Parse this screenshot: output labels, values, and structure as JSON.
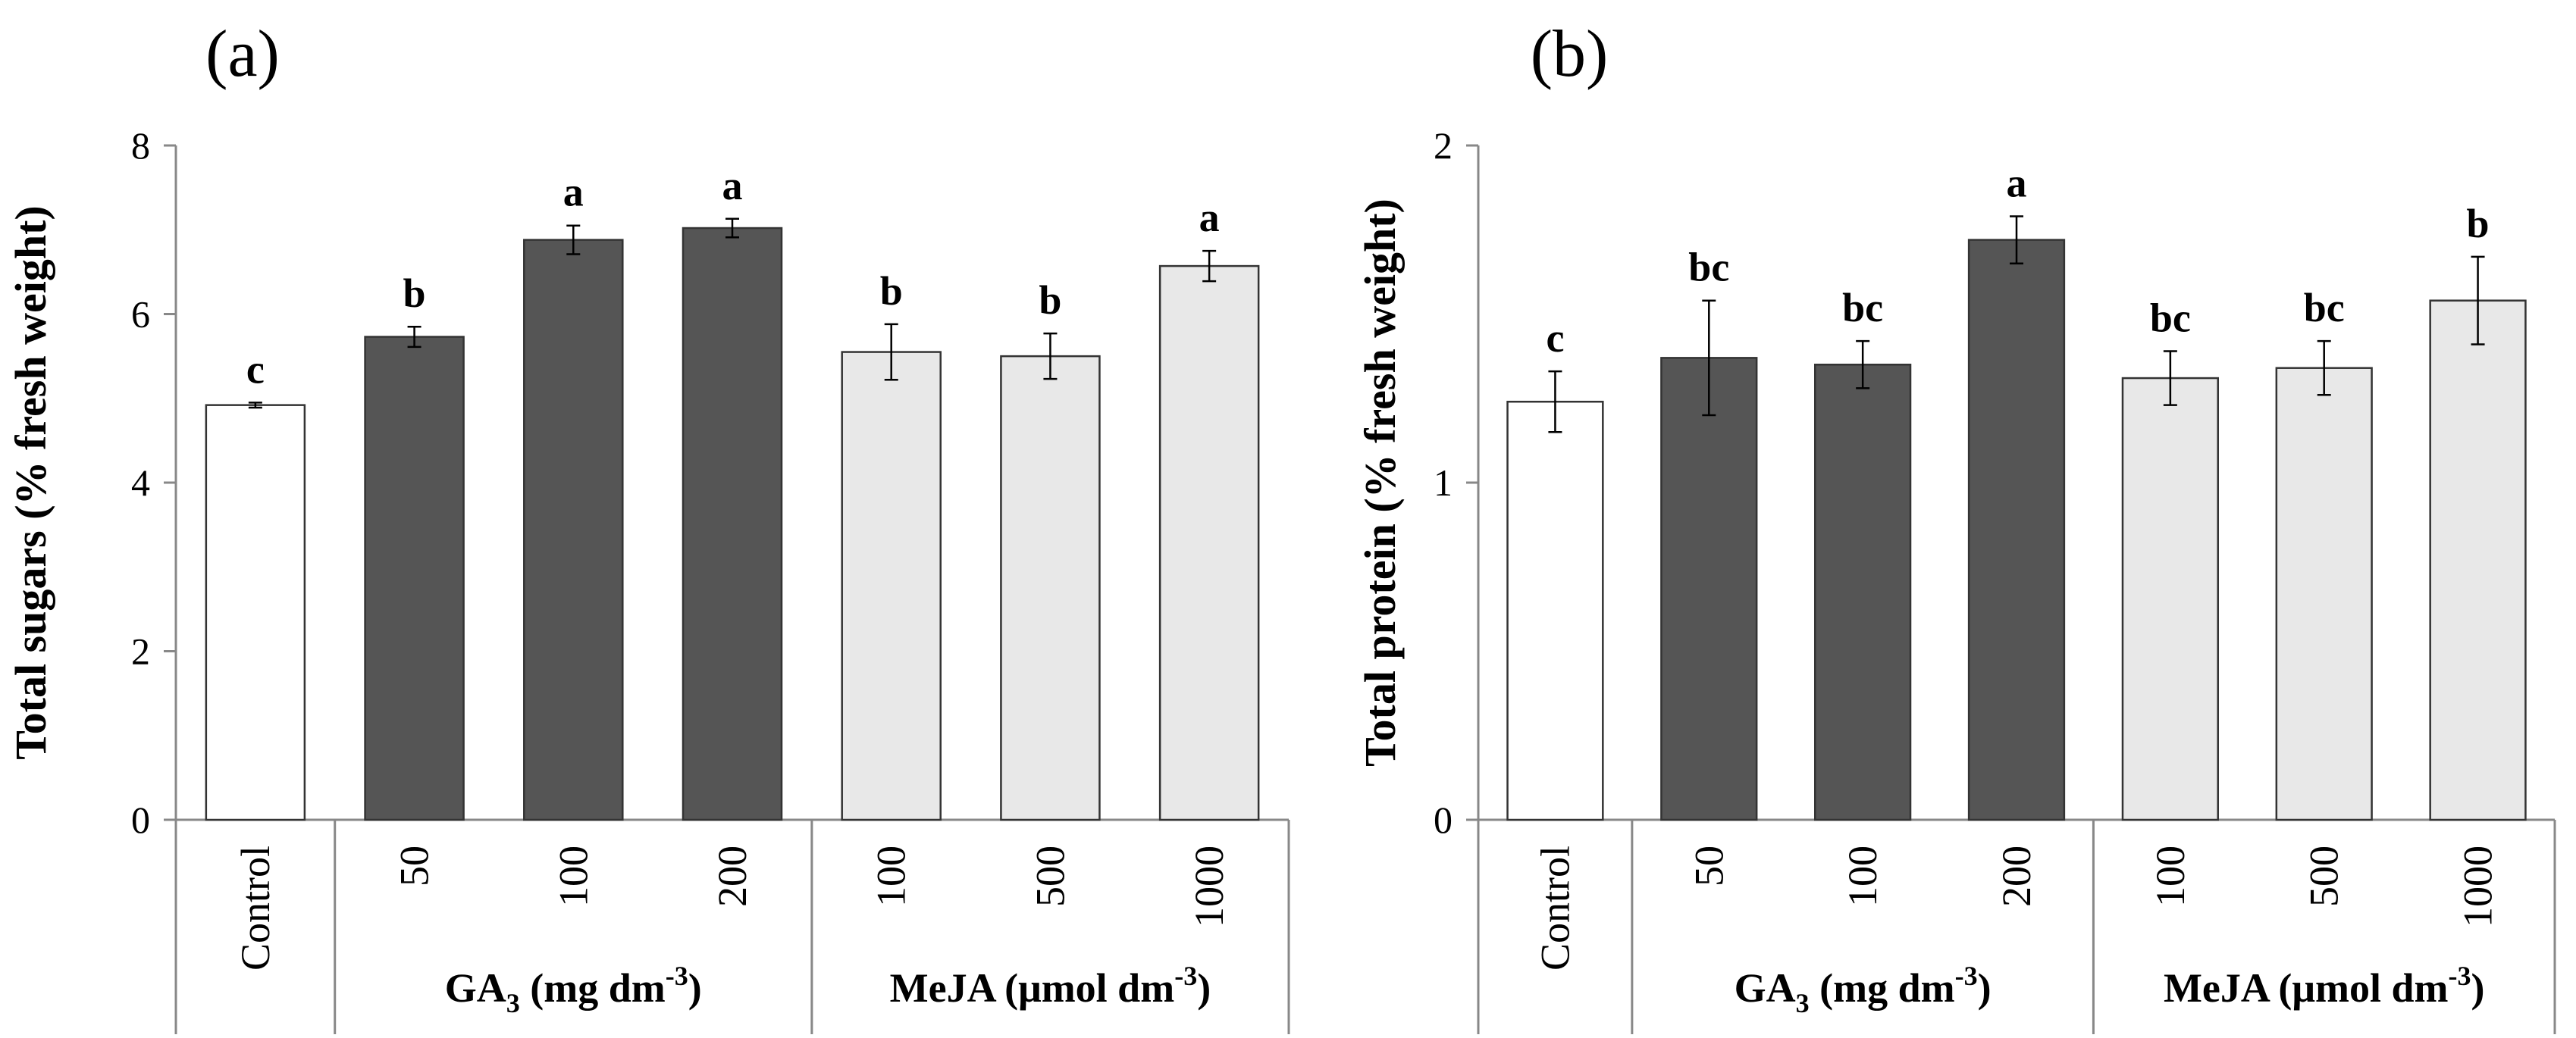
{
  "chart_data": [
    {
      "type": "bar",
      "panel": "(a)",
      "ylabel": "Total sugars  (% fresh weight)",
      "ylim": [
        0,
        8
      ],
      "yticks": [
        0,
        2,
        4,
        6,
        8
      ],
      "categories": [
        "Control",
        "50",
        "100",
        "200",
        "100",
        "500",
        "1000"
      ],
      "groups": [
        {
          "label": "",
          "sub": "",
          "tail": "",
          "sup": "",
          "end": "",
          "members": [
            0
          ]
        },
        {
          "label": "GA",
          "sub": "3",
          "tail": " (mg dm",
          "sup": "-3",
          "end": ")",
          "members": [
            1,
            2,
            3
          ]
        },
        {
          "label": "MeJA (μmol dm",
          "sub": "",
          "tail": "",
          "sup": "-3",
          "end": ")",
          "members": [
            4,
            5,
            6
          ]
        }
      ],
      "values": [
        4.92,
        5.73,
        6.88,
        7.02,
        5.55,
        5.5,
        6.57
      ],
      "errors": [
        0.03,
        0.12,
        0.17,
        0.11,
        0.33,
        0.27,
        0.18
      ],
      "letters": [
        "c",
        "b",
        "a",
        "a",
        "b",
        "b",
        "a"
      ],
      "colors": [
        "#ffffff",
        "#555555",
        "#555555",
        "#555555",
        "#e8e8e8",
        "#e8e8e8",
        "#e8e8e8"
      ]
    },
    {
      "type": "bar",
      "panel": "(b)",
      "ylabel": "Total protein  (% fresh weight)",
      "ylim": [
        0,
        2
      ],
      "yticks": [
        0,
        1,
        2
      ],
      "categories": [
        "Control",
        "50",
        "100",
        "200",
        "100",
        "500",
        "1000"
      ],
      "groups": [
        {
          "label": "",
          "sub": "",
          "tail": "",
          "sup": "",
          "end": "",
          "members": [
            0
          ]
        },
        {
          "label": "GA",
          "sub": "3",
          "tail": " (mg dm",
          "sup": "-3",
          "end": ")",
          "members": [
            1,
            2,
            3
          ]
        },
        {
          "label": "MeJA (μmol dm",
          "sub": "",
          "tail": "",
          "sup": "-3",
          "end": ")",
          "members": [
            4,
            5,
            6
          ]
        }
      ],
      "values": [
        1.24,
        1.37,
        1.35,
        1.72,
        1.31,
        1.34,
        1.54
      ],
      "errors": [
        0.09,
        0.17,
        0.07,
        0.07,
        0.08,
        0.08,
        0.13
      ],
      "letters": [
        "c",
        "bc",
        "bc",
        "a",
        "bc",
        "bc",
        "b"
      ],
      "colors": [
        "#ffffff",
        "#555555",
        "#555555",
        "#555555",
        "#e8e8e8",
        "#e8e8e8",
        "#e8e8e8"
      ]
    }
  ]
}
